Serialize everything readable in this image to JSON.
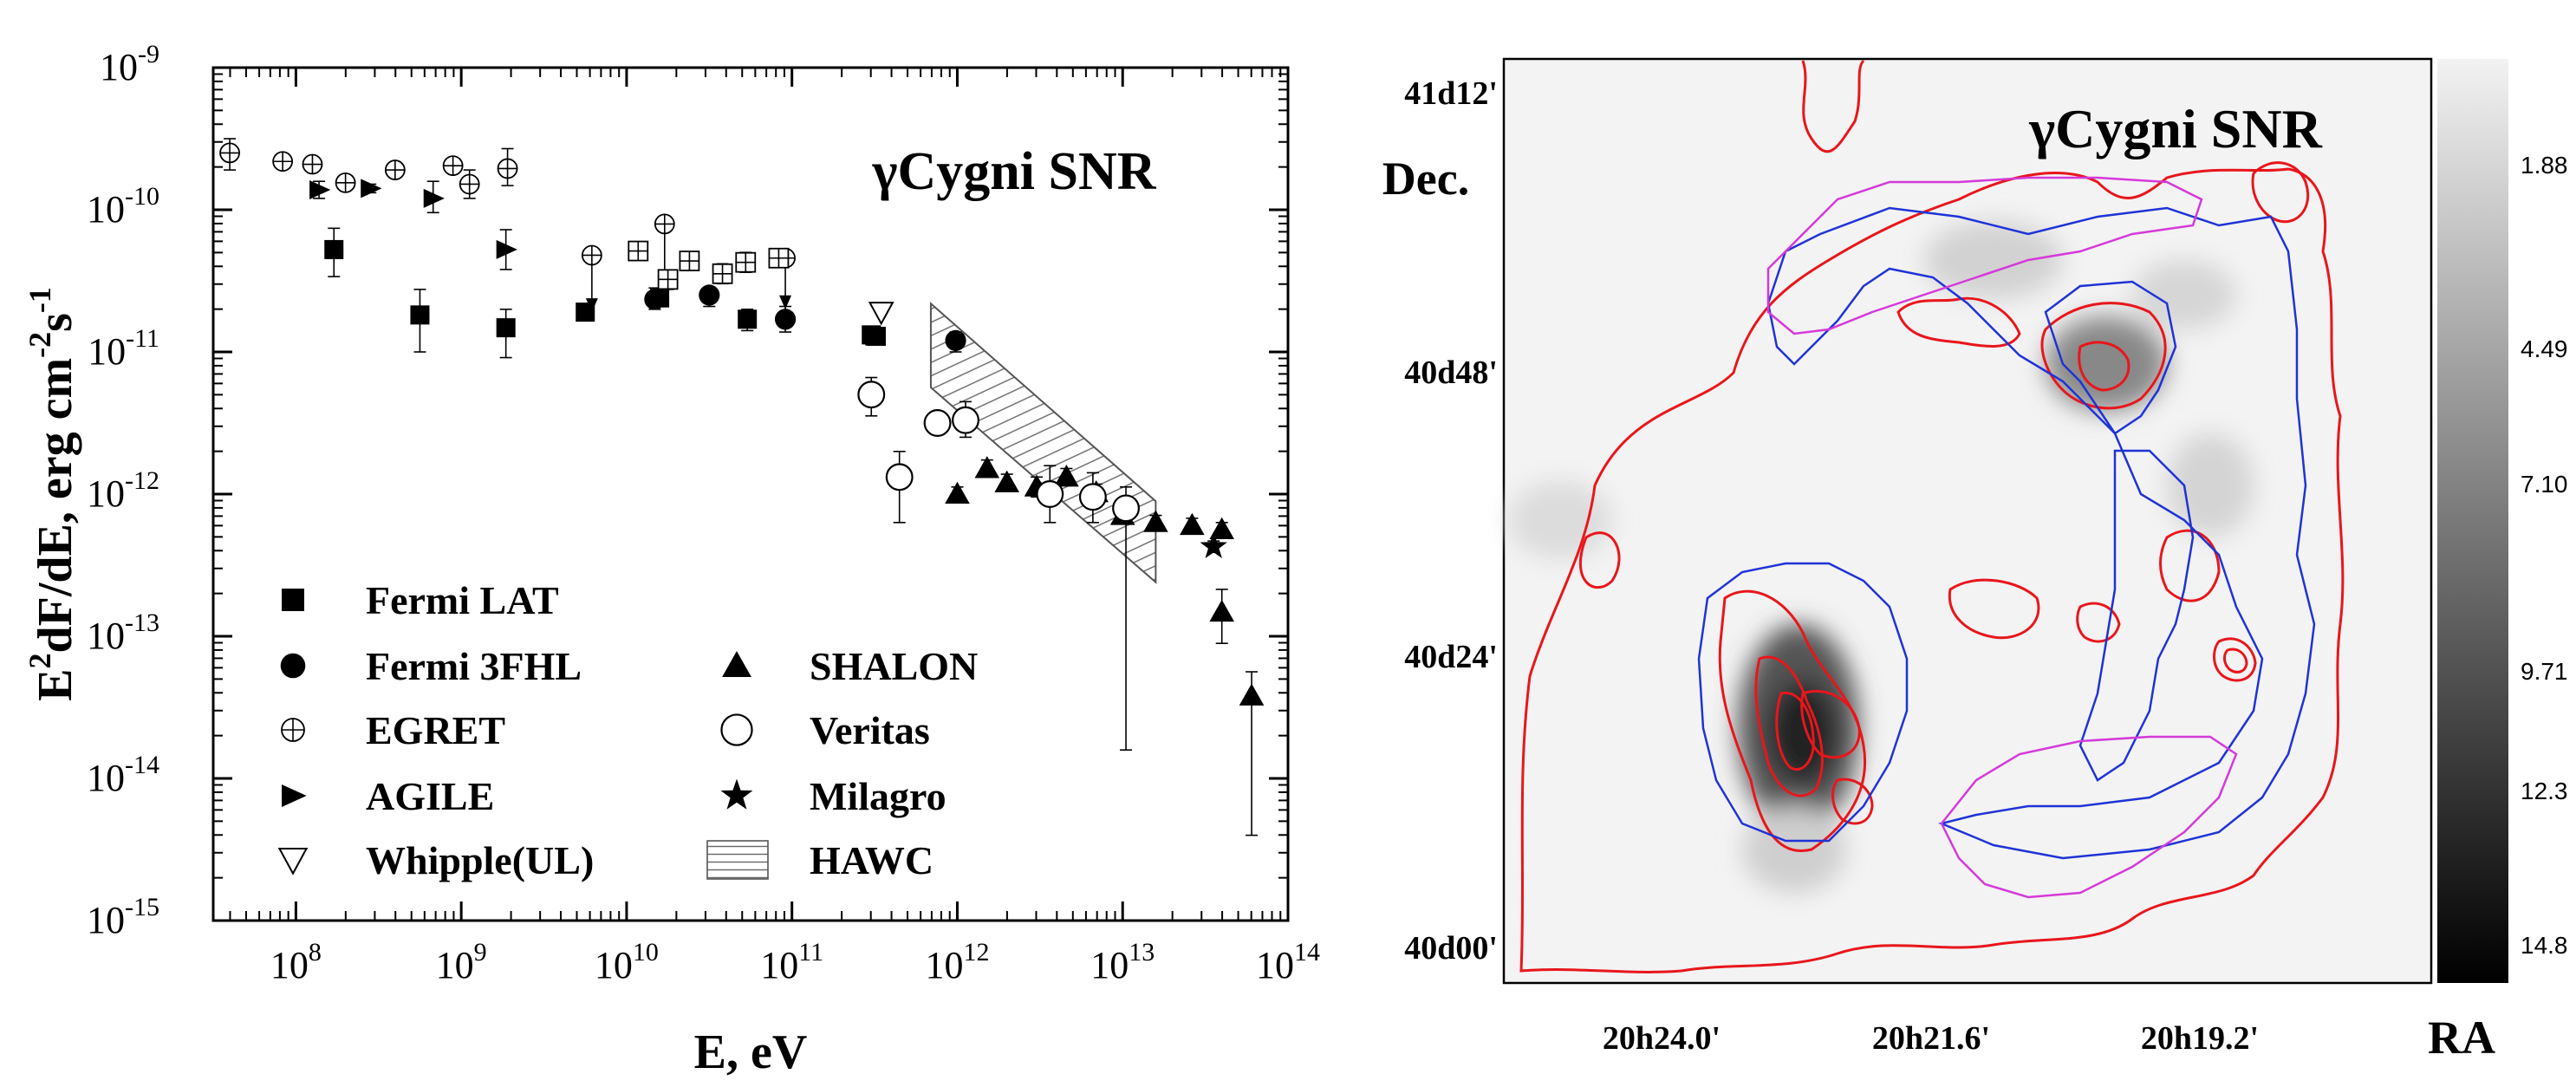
{
  "chart_data": [
    {
      "type": "scatter",
      "title": "γCygni SNR",
      "xlabel": "E, eV",
      "ylabel_parts": {
        "e": "E",
        "two": "2",
        "mid": "dF/dE, erg cm",
        "minus2": "-2",
        "s": "s",
        "minus1": "-1"
      },
      "x_scale": "log",
      "y_scale": "log",
      "xlim_log10": [
        7.5,
        14
      ],
      "ylim_log10": [
        -15,
        -9
      ],
      "x_ticks": [
        {
          "base": "10",
          "exp": "8"
        },
        {
          "base": "10",
          "exp": "9"
        },
        {
          "base": "10",
          "exp": "10"
        },
        {
          "base": "10",
          "exp": "11"
        },
        {
          "base": "10",
          "exp": "12"
        },
        {
          "base": "10",
          "exp": "13"
        },
        {
          "base": "10",
          "exp": "14"
        }
      ],
      "y_ticks": [
        {
          "base": "10",
          "exp": "-15"
        },
        {
          "base": "10",
          "exp": "-14"
        },
        {
          "base": "10",
          "exp": "-13"
        },
        {
          "base": "10",
          "exp": "-12"
        },
        {
          "base": "10",
          "exp": "-11"
        },
        {
          "base": "10",
          "exp": "-10"
        },
        {
          "base": "10",
          "exp": "-9"
        }
      ],
      "legend": [
        "Fermi LAT",
        "Fermi 3FHL",
        "EGRET",
        "AGILE",
        "Whipple(UL)",
        "SHALON",
        "Veritas",
        "Milagro",
        "HAWC"
      ],
      "series": [
        {
          "name": "Fermi LAT",
          "marker": "square",
          "points": [
            [
              8.23,
              -10.28,
              -10.13,
              -10.47
            ],
            [
              8.75,
              -10.74,
              -10.56,
              -11.0
            ],
            [
              9.27,
              -10.83,
              -10.7,
              -11.04
            ],
            [
              9.75,
              -10.72,
              -10.7,
              -10.75
            ],
            [
              10.2,
              -10.62,
              -10.58,
              -10.67
            ],
            [
              10.73,
              -10.77,
              -10.7,
              -10.85
            ],
            [
              11.48,
              -10.88,
              -10.82,
              -10.95
            ],
            [
              11.51,
              -10.89,
              -10.85,
              -10.93
            ]
          ]
        },
        {
          "name": "Fermi 3FHL",
          "marker": "circle",
          "points": [
            [
              10.17,
              -10.63,
              -10.55,
              -10.7
            ],
            [
              10.5,
              -10.6,
              -10.55,
              -10.68
            ],
            [
              10.96,
              -10.77,
              -10.68,
              -10.86
            ],
            [
              11.99,
              -10.92,
              -10.86,
              -11.0
            ]
          ]
        },
        {
          "name": "EGRET",
          "marker": "crossed-circle",
          "points": [
            [
              7.6,
              -9.6,
              -9.5,
              -9.72
            ],
            [
              7.92,
              -9.66,
              -9.62,
              -9.69
            ],
            [
              8.1,
              -9.68,
              -9.65,
              -9.71
            ],
            [
              8.3,
              -9.81,
              -9.77,
              -9.85
            ],
            [
              8.6,
              -9.72,
              -9.69,
              -9.75
            ],
            [
              8.95,
              -9.69,
              -9.66,
              -9.73
            ],
            [
              9.05,
              -9.82,
              -9.72,
              -9.92
            ],
            [
              9.28,
              -9.71,
              -9.57,
              -9.83
            ],
            [
              9.79,
              -10.32,
              null,
              null
            ],
            [
              10.23,
              -10.1,
              null,
              null
            ]
          ]
        },
        {
          "name": "EGRET ULs",
          "marker": "crossed-circle-ul",
          "points": [
            [
              9.79,
              -10.32,
              -10.32,
              -10.72
            ],
            [
              10.23,
              -10.1,
              -10.1,
              -10.55
            ],
            [
              10.96,
              -10.34,
              -10.34,
              -10.7
            ]
          ]
        },
        {
          "name": "EGRET boxed",
          "marker": "crossed-square",
          "points": [
            [
              10.07,
              -10.29,
              -10.27,
              -10.32
            ],
            [
              10.25,
              -10.49,
              -10.43,
              -10.56
            ],
            [
              10.38,
              -10.36,
              -10.32,
              -10.4
            ],
            [
              10.58,
              -10.45,
              -10.38,
              -10.52
            ],
            [
              10.72,
              -10.37,
              -10.3,
              -10.44
            ],
            [
              10.92,
              -10.34,
              -10.3,
              -10.38
            ]
          ]
        },
        {
          "name": "AGILE",
          "marker": "triangle-right",
          "points": [
            [
              8.14,
              -9.86,
              -9.8,
              -9.92
            ],
            [
              8.45,
              -9.85,
              -9.82,
              -9.88
            ],
            [
              8.83,
              -9.92,
              -9.8,
              -10.02
            ],
            [
              9.27,
              -10.28,
              -10.14,
              -10.42
            ]
          ]
        },
        {
          "name": "Whipple(UL)",
          "marker": "triangle-down-open",
          "points": [
            [
              11.54,
              -10.72,
              null,
              null
            ]
          ]
        },
        {
          "name": "SHALON",
          "marker": "triangle",
          "points": [
            [
              12.0,
              -12.0,
              -11.95,
              -12.05
            ],
            [
              12.18,
              -11.82,
              -11.76,
              -11.88
            ],
            [
              12.3,
              -11.92,
              -11.86,
              -11.98
            ],
            [
              12.48,
              -11.95,
              -11.88,
              -12.02
            ],
            [
              12.66,
              -11.88,
              -11.82,
              -11.94
            ],
            [
              12.84,
              -11.99,
              -11.93,
              -12.05
            ],
            [
              13.0,
              -12.15,
              -12.1,
              -12.2
            ],
            [
              13.2,
              -12.2,
              -12.15,
              -12.25
            ],
            [
              13.42,
              -12.22,
              -12.17,
              -12.27
            ],
            [
              13.6,
              -12.25,
              -12.2,
              -12.3
            ],
            [
              13.6,
              -12.83,
              -12.67,
              -13.05
            ],
            [
              13.78,
              -13.42,
              -13.25,
              -14.4
            ]
          ]
        },
        {
          "name": "Veritas",
          "marker": "open-circle",
          "points": [
            [
              11.48,
              -11.3,
              -11.18,
              -11.45
            ],
            [
              11.65,
              -11.88,
              -11.7,
              -12.2
            ],
            [
              11.88,
              -11.5,
              -11.45,
              -11.55
            ],
            [
              12.05,
              -11.48,
              -11.35,
              -11.6
            ],
            [
              12.56,
              -12.0,
              -11.8,
              -12.2
            ],
            [
              12.82,
              -12.02,
              -11.85,
              -12.2
            ],
            [
              13.02,
              -12.1,
              -11.95,
              -13.8
            ]
          ]
        },
        {
          "name": "Milagro",
          "marker": "star",
          "points": [
            [
              13.55,
              -12.37,
              -12.33,
              -12.41
            ]
          ]
        }
      ],
      "hawc_band_log10": {
        "x": [
          11.84,
          13.2
        ],
        "upper": [
          -10.66,
          -12.05
        ],
        "lower": [
          -11.25,
          -12.62
        ]
      }
    },
    {
      "type": "heatmap",
      "title": "γCygni SNR",
      "xlabel": "RA",
      "ylabel": "Dec.",
      "y_ticks": [
        "41d12'",
        "40d48'",
        "40d24'",
        "40d00'"
      ],
      "x_ticks": [
        "20h24.0'",
        "20h21.6'",
        "20h19.2'"
      ],
      "colorbar_ticks": [
        "1.88",
        "4.49",
        "7.10",
        "9.71",
        "12.3",
        "14.8"
      ],
      "colormap": "white-to-black",
      "contour_colors": {
        "red": "#e8161b",
        "blue": "#1f33d6",
        "magenta": "#d43ad9"
      }
    }
  ]
}
